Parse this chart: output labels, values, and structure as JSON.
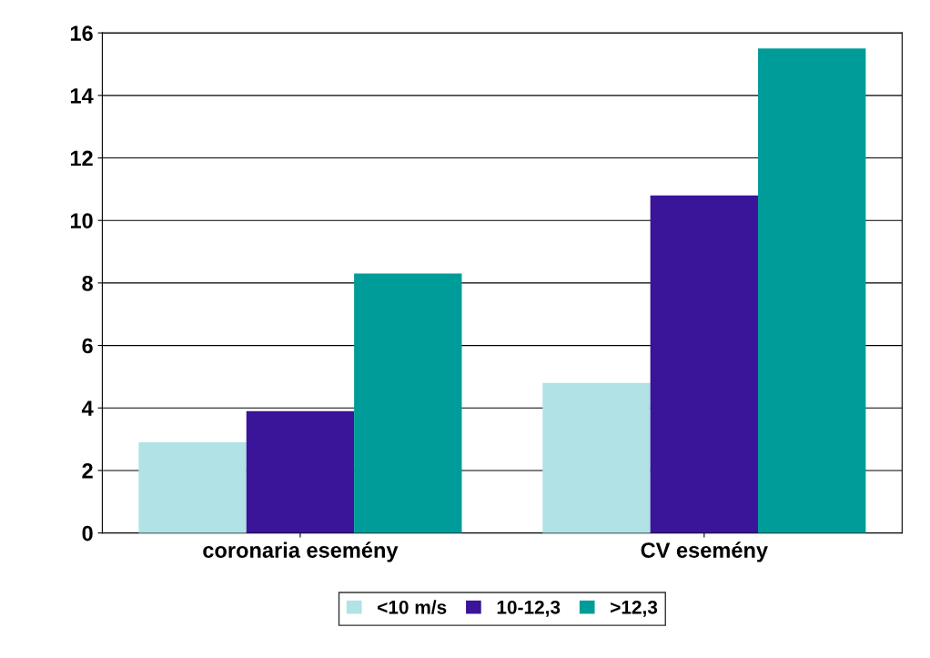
{
  "chart_data": {
    "type": "bar",
    "categories": [
      "coronaria esemény",
      "CV esemény"
    ],
    "series": [
      {
        "name": "<10 m/s",
        "color": "#b0e2e6",
        "values": [
          2.9,
          4.8
        ]
      },
      {
        "name": "10-12,3",
        "color": "#3a1499",
        "values": [
          3.9,
          10.8
        ]
      },
      {
        "name": ">12,3",
        "color": "#009c9a",
        "values": [
          8.3,
          15.5
        ]
      }
    ],
    "ylim": [
      0,
      16
    ],
    "yticks": [
      0,
      2,
      4,
      6,
      8,
      10,
      12,
      14,
      16
    ],
    "grid": "y",
    "legend": "bottom"
  }
}
